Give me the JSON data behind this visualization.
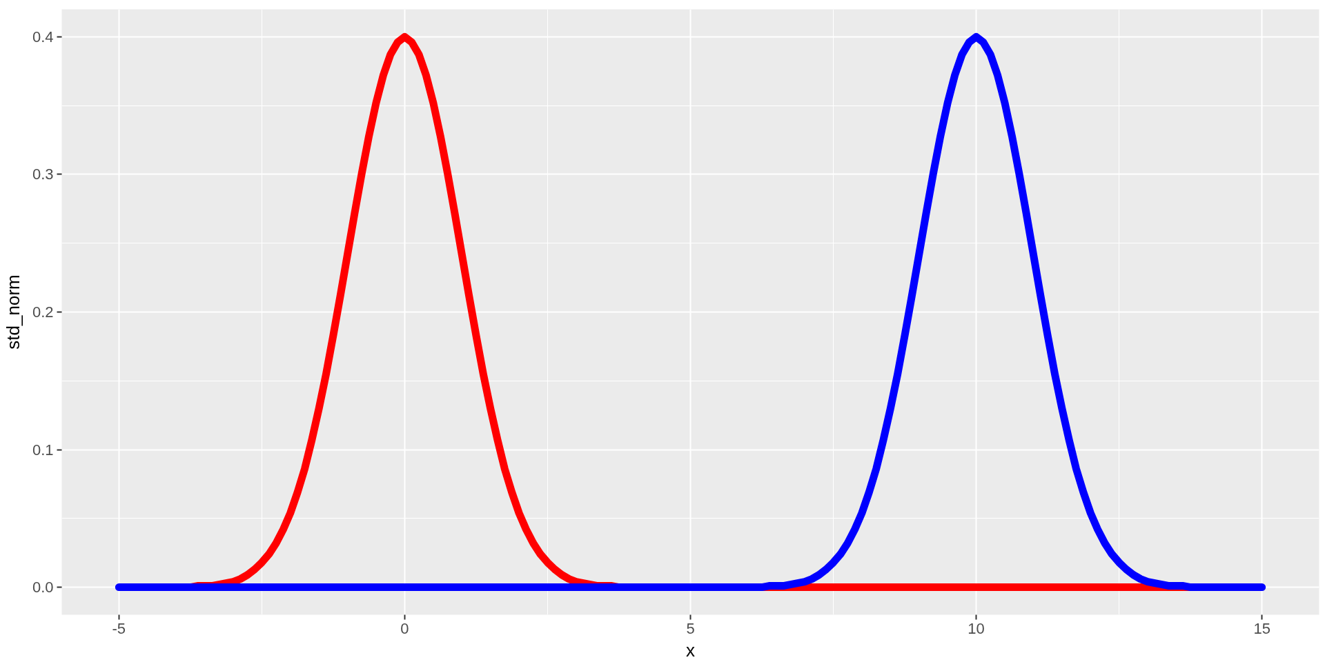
{
  "chart_data": {
    "type": "line",
    "xlabel": "x",
    "ylabel": "std_norm",
    "series": [
      {
        "color": "#ff0000",
        "x": [
          -4,
          -3.875,
          -3.75,
          -3.625,
          -3.5,
          -3.375,
          -3.25,
          -3.125,
          -3,
          -2.875,
          -2.75,
          -2.625,
          -2.5,
          -2.375,
          -2.25,
          -2.125,
          -2,
          -1.875,
          -1.75,
          -1.625,
          -1.5,
          -1.375,
          -1.25,
          -1.125,
          -1,
          -0.875,
          -0.75,
          -0.625,
          -0.5,
          -0.375,
          -0.25,
          -0.125,
          0,
          0.125,
          0.25,
          0.375,
          0.5,
          0.625,
          0.75,
          0.875,
          1,
          1.125,
          1.25,
          1.375,
          1.5,
          1.625,
          1.75,
          1.875,
          2,
          2.125,
          2.25,
          2.375,
          2.5,
          2.625,
          2.75,
          2.875,
          3,
          3.125,
          3.25,
          3.375,
          3.5,
          3.625,
          3.75,
          3.875,
          4,
          5,
          6,
          7,
          8,
          9,
          10,
          11,
          12,
          13,
          14
        ],
        "values": [
          0,
          0,
          0,
          0.001,
          0.001,
          0.001,
          0.002,
          0.003,
          0.004,
          0.006,
          0.009,
          0.013,
          0.018,
          0.024,
          0.032,
          0.042,
          0.054,
          0.069,
          0.086,
          0.107,
          0.13,
          0.155,
          0.183,
          0.212,
          0.242,
          0.272,
          0.301,
          0.328,
          0.352,
          0.372,
          0.387,
          0.396,
          0.4,
          0.396,
          0.387,
          0.372,
          0.352,
          0.328,
          0.301,
          0.272,
          0.242,
          0.212,
          0.183,
          0.155,
          0.13,
          0.107,
          0.086,
          0.069,
          0.054,
          0.042,
          0.032,
          0.024,
          0.018,
          0.013,
          0.009,
          0.006,
          0.004,
          0.003,
          0.002,
          0.001,
          0.001,
          0.001,
          0,
          0,
          0,
          0,
          0,
          0,
          0,
          0,
          0,
          0,
          0,
          0,
          0
        ]
      },
      {
        "color": "#0000ff",
        "x": [
          -5,
          -4,
          -3,
          -2,
          -1,
          0,
          1,
          2,
          3,
          4,
          5,
          6,
          6.125,
          6.25,
          6.375,
          6.5,
          6.625,
          6.75,
          6.875,
          7,
          7.125,
          7.25,
          7.375,
          7.5,
          7.625,
          7.75,
          7.875,
          8,
          8.125,
          8.25,
          8.375,
          8.5,
          8.625,
          8.75,
          8.875,
          9,
          9.125,
          9.25,
          9.375,
          9.5,
          9.625,
          9.75,
          9.875,
          10,
          10.125,
          10.25,
          10.375,
          10.5,
          10.625,
          10.75,
          10.875,
          11,
          11.125,
          11.25,
          11.375,
          11.5,
          11.625,
          11.75,
          11.875,
          12,
          12.125,
          12.25,
          12.375,
          12.5,
          12.625,
          12.75,
          12.875,
          13,
          13.125,
          13.25,
          13.375,
          13.5,
          13.625,
          13.75,
          13.875,
          14,
          15
        ],
        "values": [
          0,
          0,
          0,
          0,
          0,
          0,
          0,
          0,
          0,
          0,
          0,
          0,
          0,
          0,
          0.001,
          0.001,
          0.001,
          0.002,
          0.003,
          0.004,
          0.006,
          0.009,
          0.013,
          0.018,
          0.024,
          0.032,
          0.042,
          0.054,
          0.069,
          0.086,
          0.107,
          0.13,
          0.155,
          0.183,
          0.212,
          0.242,
          0.272,
          0.301,
          0.328,
          0.352,
          0.372,
          0.387,
          0.396,
          0.4,
          0.396,
          0.387,
          0.372,
          0.352,
          0.328,
          0.301,
          0.272,
          0.242,
          0.212,
          0.183,
          0.155,
          0.13,
          0.107,
          0.086,
          0.069,
          0.054,
          0.042,
          0.032,
          0.024,
          0.018,
          0.013,
          0.009,
          0.006,
          0.004,
          0.003,
          0.002,
          0.001,
          0.001,
          0.001,
          0,
          0,
          0,
          0
        ]
      }
    ],
    "xlim": [
      -6,
      16
    ],
    "ylim": [
      -0.02,
      0.42
    ],
    "xticks": [
      -5,
      0,
      5,
      10,
      15
    ],
    "yticks": [
      {
        "value": 0,
        "label": "0.0"
      },
      0.1,
      0.2,
      0.3,
      0.4
    ],
    "grid": true,
    "line_style": "solid"
  }
}
